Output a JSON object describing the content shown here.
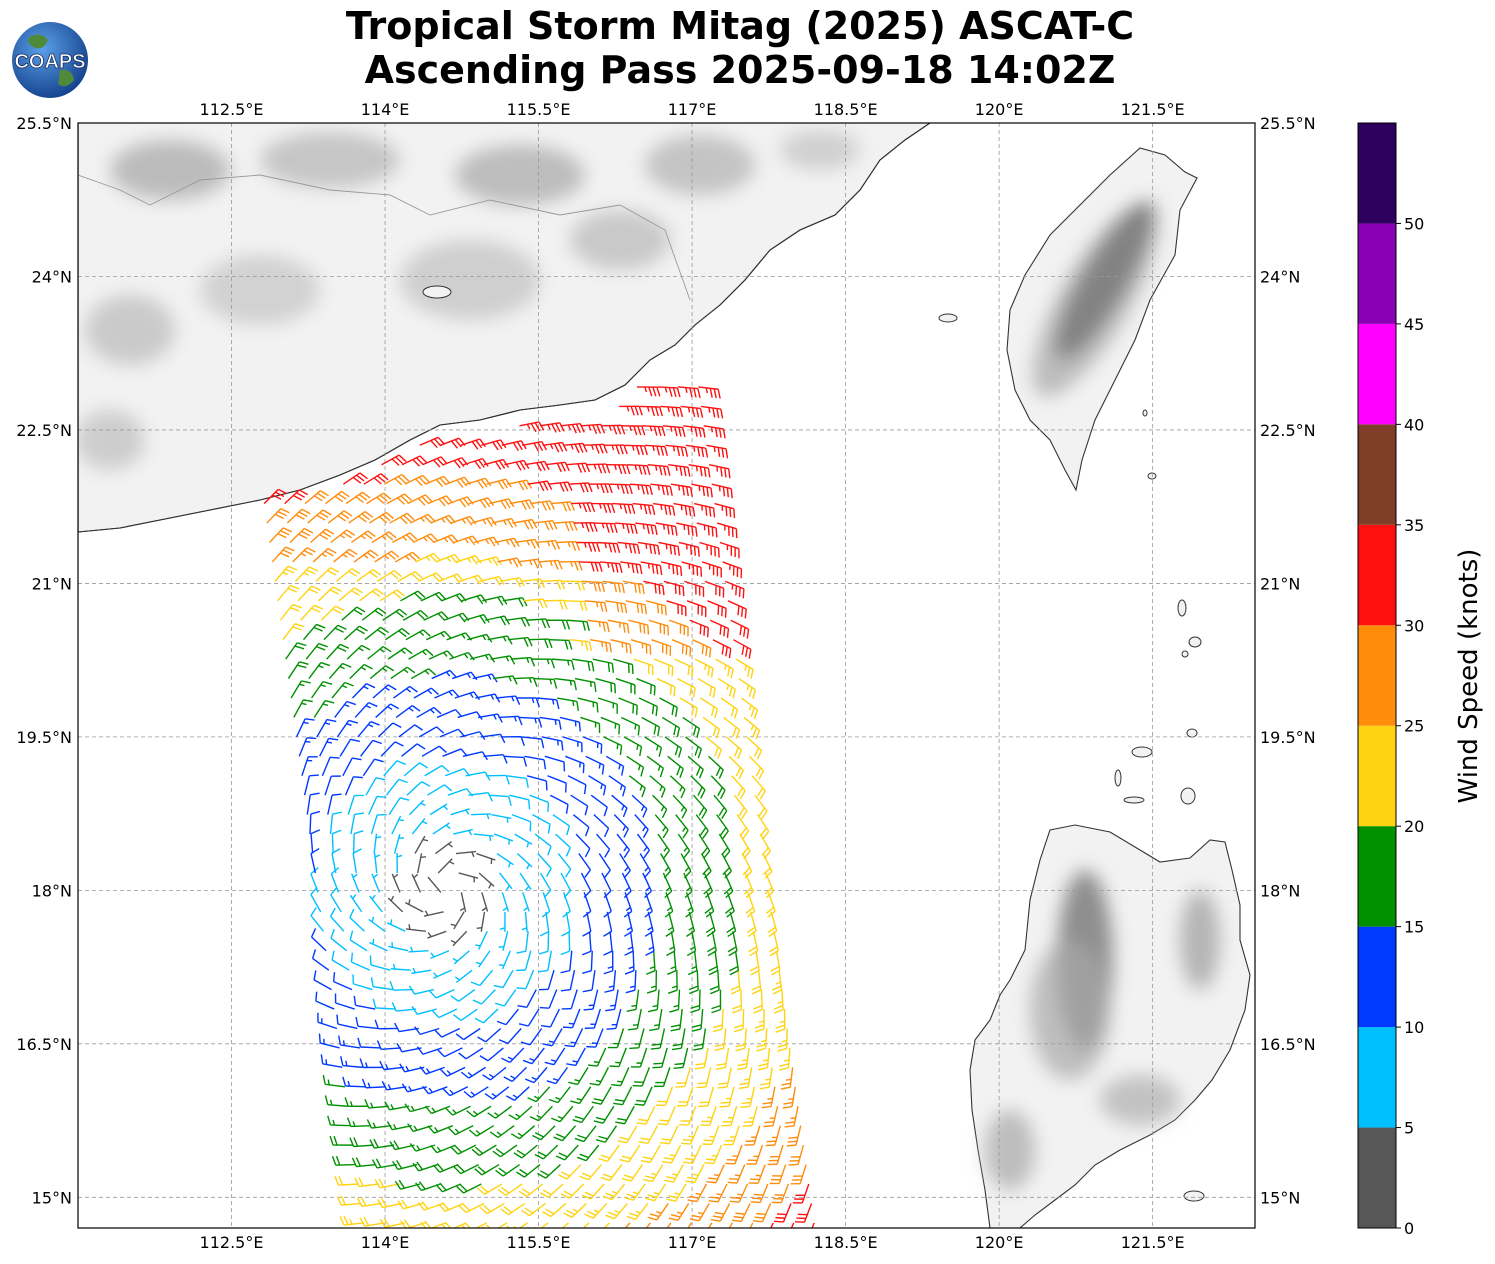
{
  "title": {
    "line1": "Tropical Storm Mitag (2025) ASCAT-C",
    "line2": "Ascending Pass 2025-09-18 14:02Z"
  },
  "logo": {
    "text": "COAPS",
    "icon": "globe-logo-icon"
  },
  "map": {
    "lon_range": [
      111.0,
      122.5
    ],
    "lat_range": [
      14.7,
      25.5
    ],
    "lon_ticks": [
      {
        "value": 112.5,
        "label": "112.5°E"
      },
      {
        "value": 114.0,
        "label": "114°E"
      },
      {
        "value": 115.5,
        "label": "115.5°E"
      },
      {
        "value": 117.0,
        "label": "117°E"
      },
      {
        "value": 118.5,
        "label": "118.5°E"
      },
      {
        "value": 120.0,
        "label": "120°E"
      },
      {
        "value": 121.5,
        "label": "121.5°E"
      }
    ],
    "lat_ticks": [
      {
        "value": 25.5,
        "label": "25.5°N"
      },
      {
        "value": 24.0,
        "label": "24°N"
      },
      {
        "value": 22.5,
        "label": "22.5°N"
      },
      {
        "value": 21.0,
        "label": "21°N"
      },
      {
        "value": 19.5,
        "label": "19.5°N"
      },
      {
        "value": 18.0,
        "label": "18°N"
      },
      {
        "value": 16.5,
        "label": "16.5°N"
      },
      {
        "value": 15.0,
        "label": "15°N"
      }
    ],
    "gridlines": true
  },
  "colorbar": {
    "label": "Wind Speed (knots)",
    "bounds": [
      0,
      5,
      10,
      15,
      20,
      25,
      30,
      35,
      40,
      45,
      50,
      55
    ],
    "tick_labels": [
      "0",
      "5",
      "10",
      "15",
      "20",
      "25",
      "30",
      "35",
      "40",
      "45",
      "50"
    ],
    "colors": [
      "#575757",
      "#00bfff",
      "#0039ff",
      "#009000",
      "#ffd311",
      "#ff8c0b",
      "#ff1010",
      "#7f3e27",
      "#ff00ff",
      "#8a00b3",
      "#2d005e"
    ]
  }
}
